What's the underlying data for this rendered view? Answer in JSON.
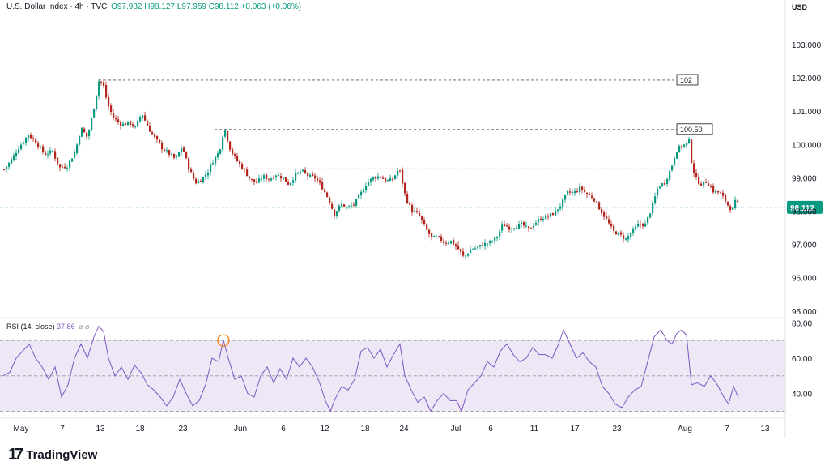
{
  "header": {
    "symbol": "U.S. Dollar Index · 4h · TVC",
    "ohlc": "O97.982  H98.127  L97.959  C98.112  +0.063 (+0.06%)"
  },
  "currency_label": "USD",
  "rsi_legend": {
    "name": "RSI (14, close)",
    "value": "37.86",
    "glyphs": "⌀ ⌀"
  },
  "brand": {
    "mark": "17",
    "name": "TradingView"
  },
  "colors": {
    "up": "#089981",
    "down": "#b3261e",
    "rsi_line": "#7e57c2",
    "rsi_band": "#ede7f6",
    "price_line": "#089981",
    "resistance": "#555555",
    "support_dash": "#e57373",
    "circle": "#f57c00"
  },
  "chart_data": [
    {
      "type": "candlestick",
      "title": "U.S. Dollar Index · 4h · TVC",
      "y_axis_ticks": [
        95,
        96,
        97,
        98,
        99,
        100,
        101,
        102,
        103
      ],
      "y_tick_labels": [
        "95.000",
        "96.000",
        "97.000",
        "98.000",
        "99.000",
        "100.000",
        "101.000",
        "102.000",
        "103.000"
      ],
      "ylim": [
        94.8,
        103.9
      ],
      "x_tick_labels": [
        "May",
        "7",
        "13",
        "18",
        "23",
        "Jun",
        "6",
        "12",
        "18",
        "24",
        "Jul",
        "6",
        "11",
        "17",
        "23",
        "Aug",
        "7",
        "13"
      ],
      "close_path": [
        [
          0,
          99.25
        ],
        [
          8,
          99.5
        ],
        [
          18,
          99.9
        ],
        [
          30,
          100.3
        ],
        [
          40,
          100.05
        ],
        [
          50,
          99.7
        ],
        [
          60,
          99.8
        ],
        [
          68,
          99.3
        ],
        [
          78,
          99.35
        ],
        [
          88,
          99.8
        ],
        [
          95,
          100.5
        ],
        [
          103,
          100.2
        ],
        [
          110,
          101.0
        ],
        [
          117,
          101.9
        ],
        [
          122,
          101.85
        ],
        [
          128,
          101.2
        ],
        [
          135,
          100.8
        ],
        [
          145,
          100.6
        ],
        [
          155,
          100.65
        ],
        [
          162,
          100.5
        ],
        [
          170,
          100.95
        ],
        [
          178,
          100.5
        ],
        [
          186,
          100.2
        ],
        [
          195,
          99.9
        ],
        [
          205,
          99.7
        ],
        [
          212,
          99.55
        ],
        [
          220,
          99.95
        ],
        [
          228,
          99.3
        ],
        [
          236,
          98.85
        ],
        [
          244,
          98.95
        ],
        [
          252,
          99.2
        ],
        [
          258,
          99.5
        ],
        [
          266,
          99.8
        ],
        [
          272,
          100.5
        ],
        [
          280,
          99.8
        ],
        [
          288,
          99.5
        ],
        [
          296,
          99.25
        ],
        [
          304,
          98.95
        ],
        [
          312,
          98.85
        ],
        [
          320,
          99.05
        ],
        [
          328,
          98.95
        ],
        [
          336,
          99.1
        ],
        [
          344,
          99.0
        ],
        [
          352,
          98.8
        ],
        [
          360,
          99.1
        ],
        [
          368,
          99.2
        ],
        [
          376,
          99.05
        ],
        [
          384,
          99.0
        ],
        [
          392,
          98.75
        ],
        [
          400,
          98.4
        ],
        [
          408,
          97.9
        ],
        [
          416,
          98.2
        ],
        [
          424,
          98.1
        ],
        [
          432,
          98.2
        ],
        [
          440,
          98.5
        ],
        [
          448,
          98.85
        ],
        [
          456,
          99.0
        ],
        [
          464,
          99.05
        ],
        [
          472,
          98.9
        ],
        [
          480,
          98.95
        ],
        [
          488,
          99.3
        ],
        [
          496,
          98.4
        ],
        [
          504,
          98.0
        ],
        [
          512,
          97.9
        ],
        [
          520,
          97.5
        ],
        [
          528,
          97.2
        ],
        [
          536,
          97.2
        ],
        [
          544,
          97.05
        ],
        [
          552,
          97.1
        ],
        [
          560,
          96.9
        ],
        [
          568,
          96.6
        ],
        [
          576,
          96.85
        ],
        [
          584,
          96.9
        ],
        [
          592,
          97.0
        ],
        [
          600,
          97.05
        ],
        [
          608,
          97.2
        ],
        [
          616,
          97.6
        ],
        [
          624,
          97.5
        ],
        [
          632,
          97.55
        ],
        [
          640,
          97.6
        ],
        [
          648,
          97.45
        ],
        [
          656,
          97.65
        ],
        [
          664,
          97.8
        ],
        [
          672,
          97.85
        ],
        [
          680,
          97.95
        ],
        [
          688,
          98.2
        ],
        [
          696,
          98.55
        ],
        [
          704,
          98.55
        ],
        [
          712,
          98.7
        ],
        [
          720,
          98.5
        ],
        [
          728,
          98.4
        ],
        [
          736,
          98.05
        ],
        [
          744,
          97.75
        ],
        [
          752,
          97.4
        ],
        [
          760,
          97.3
        ],
        [
          768,
          97.15
        ],
        [
          776,
          97.4
        ],
        [
          784,
          97.6
        ],
        [
          792,
          97.6
        ],
        [
          800,
          98.1
        ],
        [
          808,
          98.75
        ],
        [
          816,
          98.85
        ],
        [
          824,
          99.3
        ],
        [
          830,
          99.8
        ],
        [
          836,
          99.95
        ],
        [
          842,
          100.0
        ],
        [
          846,
          100.1
        ],
        [
          850,
          99.3
        ],
        [
          856,
          98.9
        ],
        [
          862,
          98.8
        ],
        [
          868,
          98.9
        ],
        [
          876,
          98.6
        ],
        [
          884,
          98.55
        ],
        [
          890,
          98.35
        ],
        [
          896,
          98.1
        ],
        [
          900,
          98.05
        ],
        [
          904,
          98.35
        ],
        [
          908,
          98.11
        ]
      ],
      "current_price": "98.112",
      "annotations": [
        {
          "label": "102",
          "price": 101.93,
          "from_x": 118,
          "to_x": 832
        },
        {
          "label": "100.50",
          "price": 100.45,
          "from_x": 261,
          "to_x": 832
        }
      ],
      "support_level": 99.27
    },
    {
      "type": "line",
      "name": "RSI (14, close)",
      "y_axis_ticks": [
        40,
        60,
        80
      ],
      "y_tick_labels": [
        "40.00",
        "60.00",
        "80.00"
      ],
      "ylim": [
        27,
        82
      ],
      "band": [
        30,
        70
      ],
      "midline": 50,
      "values": [
        [
          0,
          50
        ],
        [
          8,
          52
        ],
        [
          16,
          60
        ],
        [
          24,
          64
        ],
        [
          32,
          68
        ],
        [
          40,
          60
        ],
        [
          48,
          55
        ],
        [
          56,
          48
        ],
        [
          64,
          55
        ],
        [
          72,
          38
        ],
        [
          80,
          45
        ],
        [
          88,
          60
        ],
        [
          96,
          68
        ],
        [
          104,
          60
        ],
        [
          112,
          72
        ],
        [
          118,
          78
        ],
        [
          124,
          75
        ],
        [
          130,
          60
        ],
        [
          138,
          50
        ],
        [
          146,
          55
        ],
        [
          154,
          48
        ],
        [
          162,
          56
        ],
        [
          170,
          52
        ],
        [
          178,
          45
        ],
        [
          186,
          42
        ],
        [
          194,
          38
        ],
        [
          202,
          33
        ],
        [
          210,
          38
        ],
        [
          218,
          48
        ],
        [
          226,
          40
        ],
        [
          234,
          33
        ],
        [
          242,
          36
        ],
        [
          250,
          45
        ],
        [
          258,
          60
        ],
        [
          266,
          58
        ],
        [
          272,
          70
        ],
        [
          278,
          60
        ],
        [
          286,
          48
        ],
        [
          294,
          50
        ],
        [
          302,
          40
        ],
        [
          310,
          38
        ],
        [
          318,
          50
        ],
        [
          326,
          55
        ],
        [
          334,
          46
        ],
        [
          342,
          54
        ],
        [
          350,
          48
        ],
        [
          358,
          60
        ],
        [
          366,
          55
        ],
        [
          374,
          60
        ],
        [
          382,
          55
        ],
        [
          390,
          47
        ],
        [
          398,
          36
        ],
        [
          404,
          30
        ],
        [
          410,
          37
        ],
        [
          418,
          44
        ],
        [
          426,
          42
        ],
        [
          434,
          48
        ],
        [
          442,
          64
        ],
        [
          450,
          66
        ],
        [
          458,
          60
        ],
        [
          466,
          65
        ],
        [
          474,
          55
        ],
        [
          482,
          62
        ],
        [
          490,
          68
        ],
        [
          496,
          50
        ],
        [
          504,
          42
        ],
        [
          512,
          35
        ],
        [
          520,
          38
        ],
        [
          528,
          30
        ],
        [
          536,
          36
        ],
        [
          544,
          40
        ],
        [
          552,
          36
        ],
        [
          560,
          36
        ],
        [
          566,
          30
        ],
        [
          574,
          42
        ],
        [
          582,
          46
        ],
        [
          590,
          50
        ],
        [
          598,
          58
        ],
        [
          606,
          55
        ],
        [
          614,
          64
        ],
        [
          622,
          68
        ],
        [
          630,
          62
        ],
        [
          638,
          58
        ],
        [
          646,
          60
        ],
        [
          654,
          66
        ],
        [
          662,
          62
        ],
        [
          670,
          62
        ],
        [
          678,
          60
        ],
        [
          686,
          68
        ],
        [
          692,
          76
        ],
        [
          700,
          68
        ],
        [
          708,
          60
        ],
        [
          716,
          63
        ],
        [
          724,
          58
        ],
        [
          732,
          55
        ],
        [
          740,
          44
        ],
        [
          748,
          40
        ],
        [
          756,
          34
        ],
        [
          764,
          32
        ],
        [
          772,
          38
        ],
        [
          780,
          42
        ],
        [
          788,
          44
        ],
        [
          796,
          58
        ],
        [
          804,
          72
        ],
        [
          812,
          76
        ],
        [
          820,
          70
        ],
        [
          826,
          68
        ],
        [
          832,
          74
        ],
        [
          838,
          76
        ],
        [
          844,
          73
        ],
        [
          850,
          45
        ],
        [
          858,
          46
        ],
        [
          866,
          44
        ],
        [
          874,
          50
        ],
        [
          882,
          45
        ],
        [
          890,
          38
        ],
        [
          896,
          34
        ],
        [
          902,
          44
        ],
        [
          908,
          37.86
        ]
      ],
      "current_value": "37.86"
    }
  ]
}
